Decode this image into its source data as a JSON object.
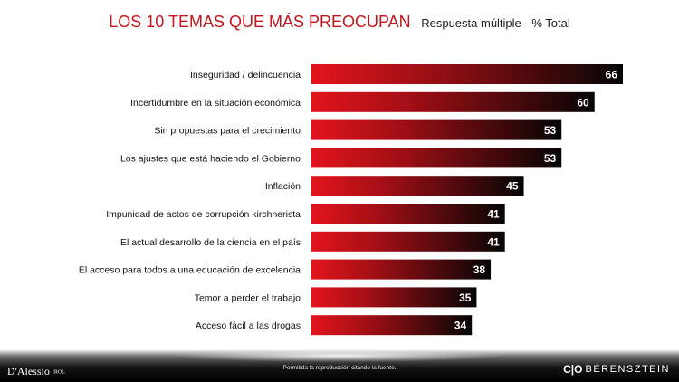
{
  "chart_data": {
    "type": "bar",
    "orientation": "horizontal",
    "title": "LOS 10 TEMAS QUE MÁS PREOCUPAN",
    "subtitle": " - Respuesta múltiple - % Total",
    "categories": [
      "Inseguridad / delincuencia",
      "Incertidumbre en la situación económica",
      "Sin propuestas para el crecimiento",
      "Los ajustes que está haciendo el Gobierno",
      "Inflación",
      "Impunidad de actos de corrupción kirchnerista",
      "El actual desarrollo de la ciencia en el país",
      "El acceso para todos a una educación de excelencia",
      "Temor a perder el trabajo",
      "Acceso fácil a las drogas"
    ],
    "values": [
      66,
      60,
      53,
      53,
      45,
      41,
      41,
      38,
      35,
      34
    ],
    "xlim": [
      0,
      66
    ],
    "colors": {
      "bar_start": "#e3141c",
      "bar_end": "#050505",
      "title": "#c4161c"
    }
  },
  "footer": {
    "logo_left": "D'Alessio",
    "logo_left_small": "IROL",
    "note": "Permitida la reproducción citando la fuente.",
    "logo_right_mark": "C|O",
    "logo_right": "BERENSZTEIN"
  }
}
